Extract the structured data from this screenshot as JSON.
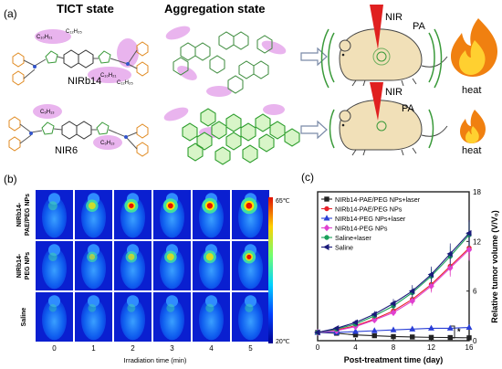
{
  "panel_a": {
    "label": "(a)",
    "tict_title": "TICT state",
    "agg_title": "Aggregation state",
    "mol1_name": "NIRb14",
    "mol2_name": "NIR6",
    "chain_top_left": "C₁₀H₂₁",
    "chain_top_right": "C₁₂H₂₅",
    "chain_mid": "C₁₀H₂₁",
    "chain_mid2": "C₁₂H₂₅",
    "chain_nir6_left": "C₆H₁₃",
    "chain_nir6_right": "C₆H₁₃",
    "nir_top": "NIR",
    "pa_top": "PA",
    "heat_top": "heat",
    "nir_bottom": "NIR",
    "pa_bottom": "PA",
    "heat_bottom": "heat"
  },
  "panel_b": {
    "label": "(b)",
    "rows": [
      "NIRb14-\nPAE/PEG NPs",
      "NIRb14-\nPEG NPs",
      "Saline"
    ],
    "row_label_lines": [
      [
        "NIRb14-",
        "PAE/PEG NPs"
      ],
      [
        "NIRb14-",
        "PEG NPs"
      ],
      [
        "Saline"
      ]
    ],
    "times": [
      "0",
      "1",
      "2",
      "3",
      "4",
      "5"
    ],
    "xlabel": "Irradiation time (min)",
    "scale_max": "65℃",
    "scale_min": "20℃",
    "spot_intensity": [
      [
        0.2,
        0.55,
        0.7,
        0.8,
        0.9,
        1.0
      ],
      [
        0.15,
        0.35,
        0.45,
        0.55,
        0.6,
        0.65
      ],
      [
        0.05,
        0.08,
        0.1,
        0.1,
        0.12,
        0.12
      ]
    ]
  },
  "panel_c": {
    "label": "(c)",
    "asterisk": "*",
    "chart_data": {
      "type": "line",
      "x": [
        0,
        2,
        4,
        6,
        8,
        10,
        12,
        14,
        16
      ],
      "xlabel": "Post-treatment time (day)",
      "ylabel": "Relative tumor volume (V/V₀)",
      "xticks": [
        0,
        4,
        8,
        12,
        16
      ],
      "yticks": [
        0,
        6,
        12,
        18
      ],
      "xlim": [
        0,
        16
      ],
      "ylim": [
        0,
        18
      ],
      "legend_position": "top-left",
      "series": [
        {
          "name": "NIRb14-PAE/PEG NPs+laser",
          "color": "#222222",
          "marker": "square",
          "values": [
            1.0,
            0.9,
            0.7,
            0.6,
            0.5,
            0.45,
            0.4,
            0.38,
            0.35
          ]
        },
        {
          "name": "NIRb14-PAE/PEG NPs",
          "color": "#e8202a",
          "marker": "circle",
          "values": [
            1.0,
            1.3,
            1.8,
            2.6,
            3.6,
            5.0,
            6.8,
            9.0,
            11.2
          ]
        },
        {
          "name": "NIRb14-PEG NPs+laser",
          "color": "#2a3fd6",
          "marker": "triangle",
          "values": [
            1.0,
            1.0,
            1.1,
            1.2,
            1.3,
            1.4,
            1.5,
            1.5,
            1.6
          ]
        },
        {
          "name": "NIRb14-PEG NPs",
          "color": "#e040d0",
          "marker": "diamond",
          "values": [
            1.0,
            1.2,
            1.7,
            2.5,
            3.4,
            4.8,
            6.6,
            8.8,
            11.0
          ]
        },
        {
          "name": "Saline+laser",
          "color": "#1aa05a",
          "marker": "circle",
          "values": [
            1.0,
            1.4,
            2.0,
            3.0,
            4.2,
            5.8,
            7.8,
            10.2,
            12.8
          ]
        },
        {
          "name": "Saline",
          "color": "#1a1a7a",
          "marker": "triangle-left",
          "values": [
            1.0,
            1.5,
            2.2,
            3.2,
            4.5,
            6.0,
            8.0,
            10.5,
            13.0
          ]
        }
      ]
    }
  }
}
